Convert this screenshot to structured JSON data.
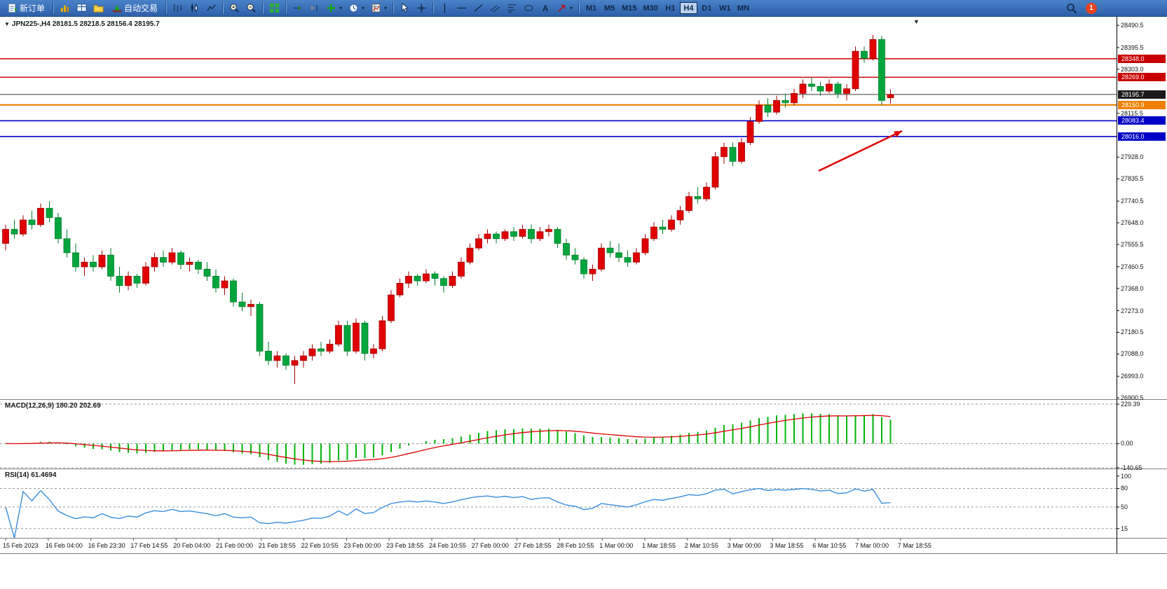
{
  "toolbar": {
    "new_order": "新订单",
    "auto_trading": "自动交易",
    "text_tool_label": "A",
    "timeframes": [
      "M1",
      "M5",
      "M15",
      "M30",
      "H1",
      "H4",
      "D1",
      "W1",
      "MN"
    ],
    "active_timeframe": "H4",
    "notification_count": "1"
  },
  "chart": {
    "symbol_line": "JPN225-,H4  28181.5 28218.5 28156.4 28195.7",
    "price_axis_ticks": [
      28490.5,
      28395.5,
      28303.0,
      28115.5,
      27928.0,
      27835.5,
      27740.5,
      27648.0,
      27555.5,
      27460.5,
      27368.0,
      27273.0,
      27180.5,
      27088.0,
      26993.0,
      26900.5
    ],
    "price_lines": [
      {
        "label": "28348.0",
        "price": 28348.0,
        "color": "#c80000",
        "width": 1.4
      },
      {
        "label": "28269.0",
        "price": 28269.0,
        "color": "#c80000",
        "width": 1.4
      },
      {
        "label": "28195.7",
        "price": 28195.7,
        "color": "#3a3a3a",
        "width": 1.0,
        "badge_color": "#1a1a1a"
      },
      {
        "label": "28150.9",
        "price": 28150.9,
        "color": "#f08000",
        "width": 2.2
      },
      {
        "label": "28083.4",
        "price": 28083.4,
        "color": "#0000c8",
        "width": 1.6
      },
      {
        "label": "28016.0",
        "price": 28016.0,
        "color": "#0000c8",
        "width": 1.6
      }
    ],
    "arrow": {
      "from": [
        1168,
        220
      ],
      "to": [
        1287,
        163
      ],
      "color": "#e00000"
    },
    "time_axis": [
      "15 Feb 2023",
      "16 Feb 04:00",
      "16 Feb 23:30",
      "17 Feb 14:55",
      "20 Feb 04:00",
      "21 Feb 00:00",
      "21 Feb 18:55",
      "22 Feb 10:55",
      "23 Feb 00:00",
      "23 Feb 18:55",
      "24 Feb 10:55",
      "27 Feb 00:00",
      "27 Feb 18:55",
      "28 Feb 10:55",
      "1 Mar 00:00",
      "1 Mar 18:55",
      "2 Mar 10:55",
      "3 Mar 00:00",
      "3 Mar 18:55",
      "6 Mar 10:55",
      "7 Mar 00:00",
      "7 Mar 18:55"
    ]
  },
  "chart_data": {
    "type": "candlestick",
    "symbol": "JPN225-",
    "timeframe": "H4",
    "y_range": [
      26900.5,
      28490.5
    ],
    "colors": {
      "bull": "#e00000",
      "bull_stroke": "#a00000",
      "bear": "#00a63c",
      "bear_stroke": "#007d2a"
    },
    "ohlc": [
      [
        27560,
        27640,
        27530,
        27620
      ],
      [
        27620,
        27660,
        27580,
        27600
      ],
      [
        27600,
        27680,
        27590,
        27660
      ],
      [
        27660,
        27700,
        27620,
        27640
      ],
      [
        27640,
        27730,
        27630,
        27710
      ],
      [
        27710,
        27740,
        27650,
        27670
      ],
      [
        27670,
        27690,
        27560,
        27580
      ],
      [
        27580,
        27620,
        27500,
        27520
      ],
      [
        27520,
        27560,
        27440,
        27460
      ],
      [
        27460,
        27500,
        27420,
        27480
      ],
      [
        27480,
        27510,
        27440,
        27460
      ],
      [
        27460,
        27530,
        27450,
        27510
      ],
      [
        27510,
        27540,
        27400,
        27420
      ],
      [
        27420,
        27460,
        27350,
        27380
      ],
      [
        27380,
        27440,
        27360,
        27420
      ],
      [
        27420,
        27430,
        27370,
        27390
      ],
      [
        27390,
        27480,
        27380,
        27460
      ],
      [
        27460,
        27520,
        27440,
        27500
      ],
      [
        27500,
        27530,
        27460,
        27480
      ],
      [
        27480,
        27540,
        27470,
        27520
      ],
      [
        27520,
        27530,
        27450,
        27470
      ],
      [
        27470,
        27500,
        27440,
        27480
      ],
      [
        27480,
        27490,
        27430,
        27450
      ],
      [
        27450,
        27480,
        27400,
        27420
      ],
      [
        27420,
        27450,
        27350,
        27370
      ],
      [
        27370,
        27420,
        27340,
        27400
      ],
      [
        27400,
        27410,
        27290,
        27310
      ],
      [
        27310,
        27350,
        27270,
        27290
      ],
      [
        27290,
        27320,
        27250,
        27300
      ],
      [
        27300,
        27310,
        27080,
        27100
      ],
      [
        27100,
        27140,
        27040,
        27060
      ],
      [
        27060,
        27100,
        27030,
        27080
      ],
      [
        27080,
        27090,
        27020,
        27040
      ],
      [
        27040,
        27080,
        26960,
        27060
      ],
      [
        27060,
        27100,
        27030,
        27080
      ],
      [
        27080,
        27130,
        27060,
        27110
      ],
      [
        27110,
        27140,
        27080,
        27100
      ],
      [
        27100,
        27150,
        27090,
        27130
      ],
      [
        27130,
        27230,
        27120,
        27210
      ],
      [
        27210,
        27230,
        27080,
        27100
      ],
      [
        27100,
        27240,
        27090,
        27220
      ],
      [
        27220,
        27230,
        27060,
        27090
      ],
      [
        27090,
        27130,
        27070,
        27110
      ],
      [
        27110,
        27250,
        27100,
        27230
      ],
      [
        27230,
        27360,
        27220,
        27340
      ],
      [
        27340,
        27410,
        27330,
        27390
      ],
      [
        27390,
        27440,
        27370,
        27420
      ],
      [
        27420,
        27430,
        27380,
        27400
      ],
      [
        27400,
        27450,
        27390,
        27430
      ],
      [
        27430,
        27440,
        27380,
        27410
      ],
      [
        27410,
        27420,
        27350,
        27380
      ],
      [
        27380,
        27440,
        27370,
        27420
      ],
      [
        27420,
        27500,
        27410,
        27480
      ],
      [
        27480,
        27560,
        27470,
        27540
      ],
      [
        27540,
        27600,
        27530,
        27580
      ],
      [
        27580,
        27620,
        27560,
        27600
      ],
      [
        27600,
        27610,
        27560,
        27580
      ],
      [
        27580,
        27620,
        27570,
        27610
      ],
      [
        27610,
        27630,
        27570,
        27590
      ],
      [
        27590,
        27640,
        27580,
        27620
      ],
      [
        27620,
        27640,
        27560,
        27580
      ],
      [
        27580,
        27630,
        27570,
        27610
      ],
      [
        27610,
        27640,
        27590,
        27620
      ],
      [
        27620,
        27630,
        27540,
        27560
      ],
      [
        27560,
        27580,
        27490,
        27510
      ],
      [
        27510,
        27540,
        27470,
        27490
      ],
      [
        27490,
        27500,
        27410,
        27430
      ],
      [
        27430,
        27470,
        27400,
        27450
      ],
      [
        27450,
        27560,
        27440,
        27540
      ],
      [
        27540,
        27570,
        27500,
        27520
      ],
      [
        27520,
        27560,
        27480,
        27500
      ],
      [
        27500,
        27530,
        27460,
        27480
      ],
      [
        27480,
        27540,
        27470,
        27520
      ],
      [
        27520,
        27600,
        27510,
        27580
      ],
      [
        27580,
        27650,
        27570,
        27630
      ],
      [
        27630,
        27660,
        27600,
        27620
      ],
      [
        27620,
        27680,
        27610,
        27660
      ],
      [
        27660,
        27720,
        27640,
        27700
      ],
      [
        27700,
        27780,
        27690,
        27760
      ],
      [
        27760,
        27800,
        27730,
        27750
      ],
      [
        27750,
        27820,
        27740,
        27800
      ],
      [
        27800,
        27950,
        27790,
        27930
      ],
      [
        27930,
        27990,
        27900,
        27970
      ],
      [
        27970,
        27990,
        27890,
        27910
      ],
      [
        27910,
        28010,
        27900,
        27990
      ],
      [
        27990,
        28100,
        27980,
        28080
      ],
      [
        28080,
        28170,
        28070,
        28150
      ],
      [
        28150,
        28180,
        28100,
        28120
      ],
      [
        28120,
        28190,
        28110,
        28170
      ],
      [
        28170,
        28200,
        28140,
        28160
      ],
      [
        28160,
        28220,
        28150,
        28200
      ],
      [
        28200,
        28260,
        28180,
        28240
      ],
      [
        28240,
        28270,
        28210,
        28230
      ],
      [
        28230,
        28250,
        28190,
        28210
      ],
      [
        28210,
        28260,
        28200,
        28240
      ],
      [
        28240,
        28250,
        28180,
        28200
      ],
      [
        28200,
        28240,
        28170,
        28220
      ],
      [
        28220,
        28400,
        28210,
        28380
      ],
      [
        28380,
        28400,
        28330,
        28350
      ],
      [
        28350,
        28450,
        28340,
        28430
      ],
      [
        28430,
        28445,
        28150,
        28170
      ],
      [
        28181.5,
        28218.5,
        28156.4,
        28195.7
      ]
    ],
    "indicators": [
      {
        "name": "MACD",
        "params": "12,26,9",
        "values": [
          "180.20",
          "202.69"
        ]
      },
      {
        "name": "RSI",
        "params": "14",
        "values": [
          "61.4694"
        ]
      }
    ]
  },
  "macd": {
    "label": "MACD(12,26,9)",
    "value_main": "180.20",
    "value_signal": "202.69",
    "histogram_color": "#00b40a",
    "signal_color": "#e00000",
    "axis": [
      {
        "label": "229.39",
        "v": 229.39
      },
      {
        "label": "0.00",
        "v": 0
      },
      {
        "label": "-140.65",
        "v": -140.65
      }
    ],
    "levels": [
      229.39,
      0,
      -140.65
    ]
  },
  "rsi": {
    "label": "RSI(14)",
    "value": "61.4694",
    "line_color": "#3a8edc",
    "axis": [
      {
        "label": "100",
        "v": 100
      },
      {
        "label": "80",
        "v": 80
      },
      {
        "label": "50",
        "v": 50
      },
      {
        "label": "15",
        "v": 15
      }
    ],
    "levels": [
      80,
      50,
      15
    ]
  }
}
